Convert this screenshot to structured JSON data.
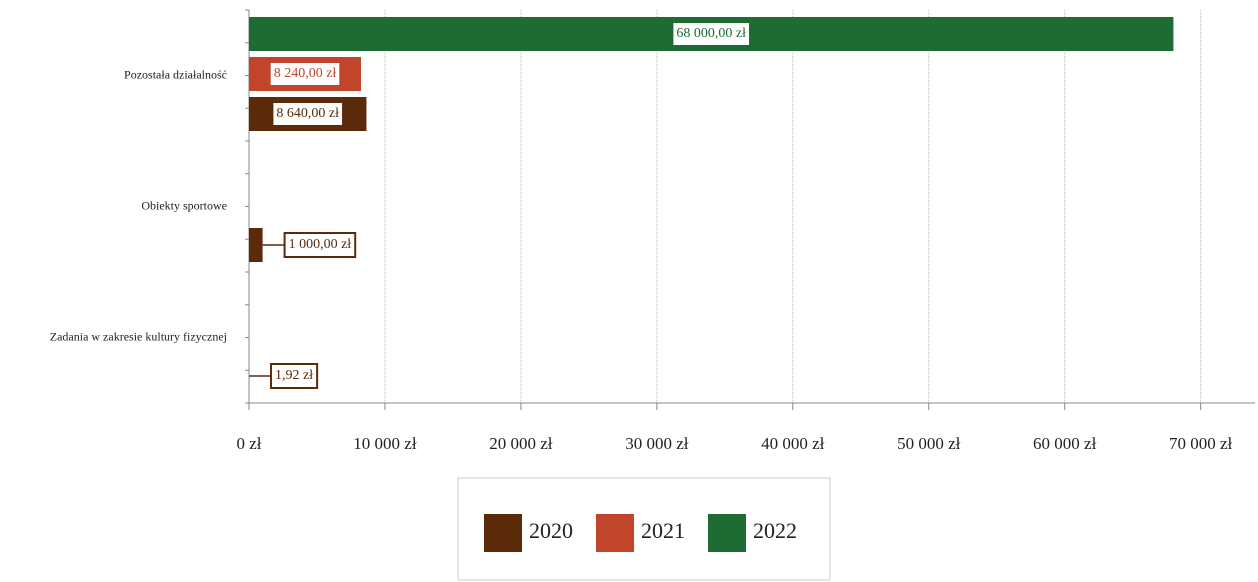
{
  "chart_data": {
    "type": "bar",
    "orientation": "horizontal",
    "categories": [
      "Pozostała działalność",
      "Obiekty sportowe",
      "Zadania w zakresie kultury fizycznej"
    ],
    "series": [
      {
        "name": "2020",
        "color": "#5a2a0a",
        "values": [
          8640,
          1000,
          1.92
        ],
        "value_labels": [
          "8 640,00 zł",
          "1 000,00 zł",
          "1,92 zł"
        ]
      },
      {
        "name": "2021",
        "color": "#c0452a",
        "values": [
          8240,
          null,
          null
        ],
        "value_labels": [
          "8 240,00 zł",
          null,
          null
        ]
      },
      {
        "name": "2022",
        "color": "#1e6b34",
        "values": [
          68000,
          null,
          null
        ],
        "value_labels": [
          "68 000,00 zł",
          null,
          null
        ]
      }
    ],
    "xlim": [
      0,
      74000
    ],
    "xticks": [
      {
        "value": 0,
        "label": "0 zł"
      },
      {
        "value": 10000,
        "label": "10 000 zł"
      },
      {
        "value": 20000,
        "label": "20 000 zł"
      },
      {
        "value": 30000,
        "label": "30 000 zł"
      },
      {
        "value": 40000,
        "label": "40 000 zł"
      },
      {
        "value": 50000,
        "label": "50 000 zł"
      },
      {
        "value": 60000,
        "label": "60 000 zł"
      },
      {
        "value": 70000,
        "label": "70 000 zł"
      }
    ],
    "grid": true,
    "legend": "bottom"
  }
}
